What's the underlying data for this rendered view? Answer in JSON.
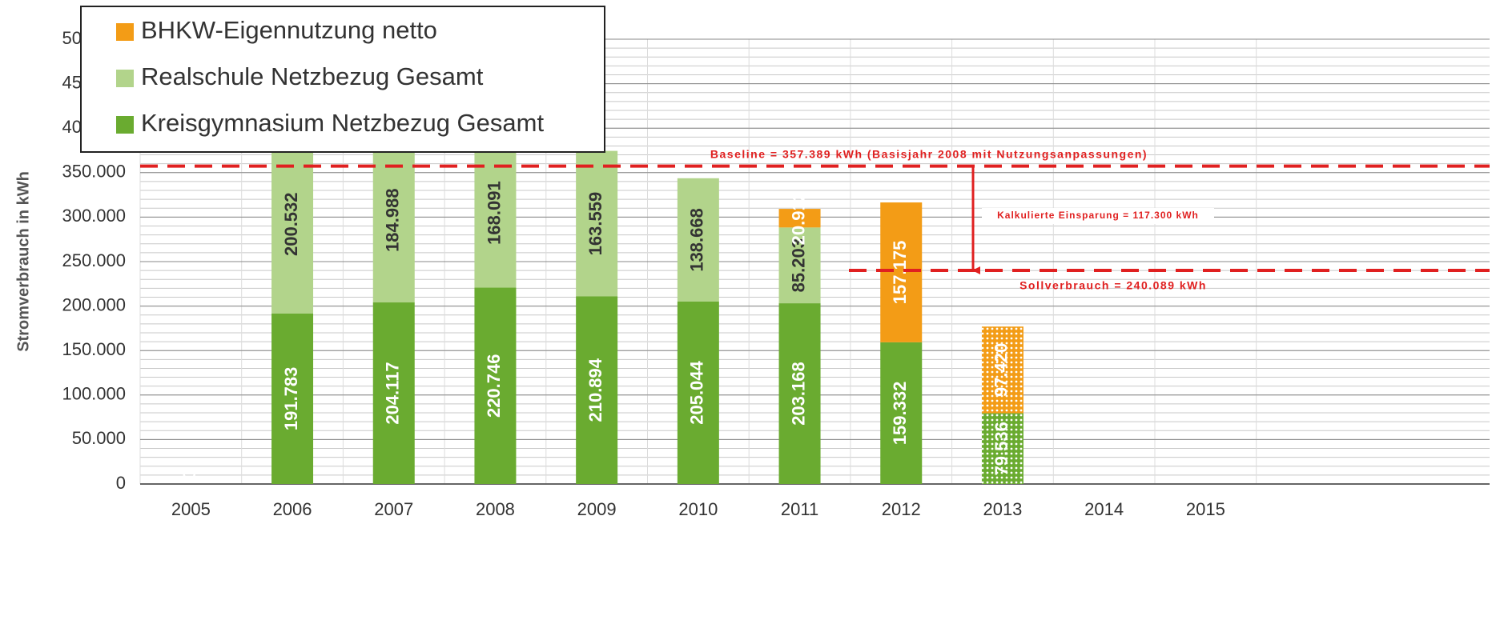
{
  "chart_data": {
    "type": "stacked_bar",
    "y_label": "Stromverbrauch in kWh",
    "categories": [
      "2005",
      "2006",
      "2007",
      "2008",
      "2009",
      "2010",
      "2011",
      "2012",
      "2013",
      "2014",
      "2015"
    ],
    "series": [
      {
        "name": "Kreisgymnasium Netzbezug Gesamt",
        "color": "#6aab30",
        "values": [
          0,
          191783,
          204117,
          220746,
          210894,
          205044,
          203168,
          159332,
          79536,
          null,
          null
        ],
        "value_labels": [
          "0",
          "191.783",
          "204.117",
          "220.746",
          "210.894",
          "205.044",
          "203.168",
          "159.332",
          "79.536",
          null,
          null
        ]
      },
      {
        "name": "Realschule Netzbezug Gesamt",
        "color": "#b2d48b",
        "values": [
          null,
          200532,
          184988,
          168091,
          163559,
          138668,
          85203,
          null,
          null,
          null,
          null
        ],
        "value_labels": [
          null,
          "200.532",
          "184.988",
          "168.091",
          "163.559",
          "138.668",
          "85.203",
          null,
          null,
          null,
          null
        ]
      },
      {
        "name": "BHKW-Eigennutzung netto",
        "color": "#f39c16",
        "values": [
          null,
          null,
          null,
          null,
          null,
          null,
          20912,
          157175,
          97420,
          null,
          null
        ],
        "value_labels": [
          null,
          null,
          null,
          null,
          null,
          null,
          "20.912",
          "157.175",
          "97.420",
          null,
          null
        ]
      }
    ],
    "dotted": [
      "2013"
    ],
    "ylim": [
      0,
      500000
    ],
    "yticks": [
      0,
      {
        "value": 50000,
        "label": "50.000"
      },
      {
        "value": 100000,
        "label": "100.000"
      },
      {
        "value": 150000,
        "label": "150.000"
      },
      {
        "value": 200000,
        "label": "200.000"
      },
      {
        "value": 250000,
        "label": "250.000"
      },
      {
        "value": 300000,
        "label": "300.000"
      },
      {
        "value": 350000,
        "label": "350.000"
      },
      {
        "value": 400000,
        "label": "400.000"
      },
      {
        "value": 450000,
        "label": "450.000"
      },
      {
        "value": 500000,
        "label": "500.000"
      }
    ],
    "grid": true,
    "reference_lines": [
      {
        "value": 357389,
        "label": "Baseline = 357.389 kWh (Basisjahr 2008 mit Nutzungsanpassungen)",
        "color": "#e02020"
      },
      {
        "value": 240089,
        "label": "Sollverbrauch = 240.089 kWh",
        "color": "#e02020"
      }
    ],
    "savings": {
      "value": 117300,
      "label": "Kalkulierte Einsparung = 117.300 kWh"
    }
  }
}
